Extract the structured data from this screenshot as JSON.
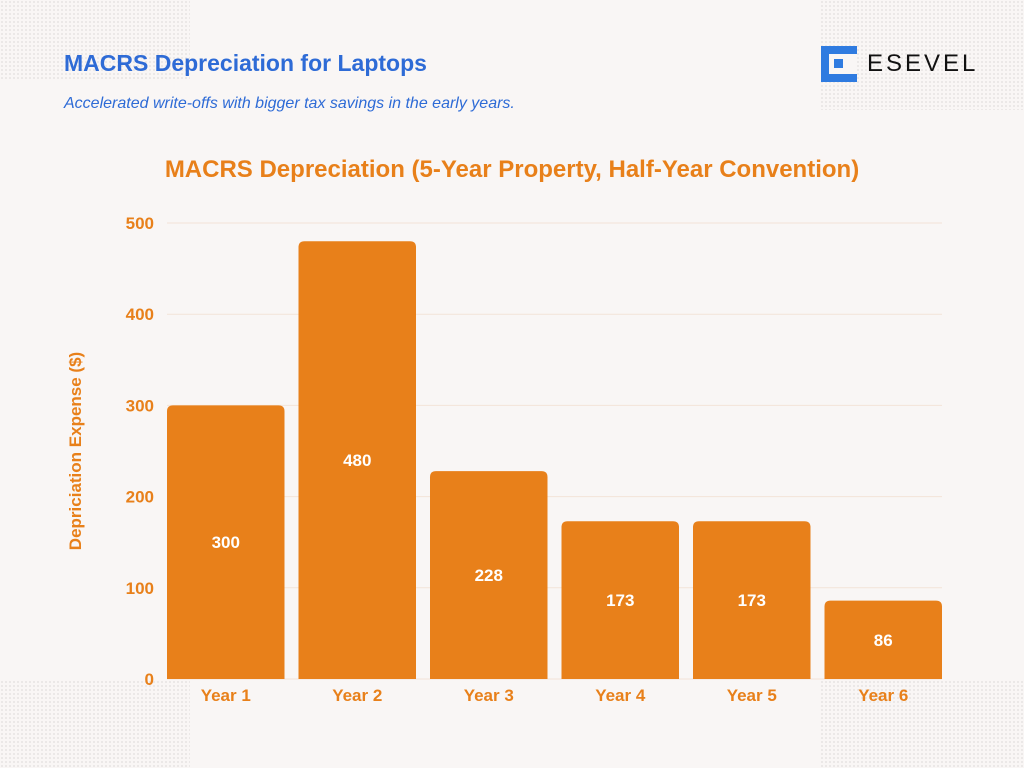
{
  "header": {
    "title": "MACRS Depreciation for Laptops",
    "subtitle": "Accelerated write-offs with bigger tax savings in the early years.",
    "logo_text": "ESEVEL"
  },
  "colors": {
    "bar": "#e8801a",
    "title": "#2e6bd6",
    "chart_text": "#e8801a",
    "grid": "#f3e3d8"
  },
  "chart_data": {
    "type": "bar",
    "title": "MACRS Depreciation (5-Year Property, Half-Year Convention)",
    "xlabel": "",
    "ylabel": "Depriciation Expense ($)",
    "categories": [
      "Year 1",
      "Year 2",
      "Year 3",
      "Year 4",
      "Year 5",
      "Year 6"
    ],
    "values": [
      300,
      480,
      228,
      173,
      173,
      86
    ],
    "ylim": [
      0,
      500
    ],
    "yticks": [
      0,
      100,
      200,
      300,
      400,
      500
    ],
    "grid": true,
    "data_labels": true
  }
}
